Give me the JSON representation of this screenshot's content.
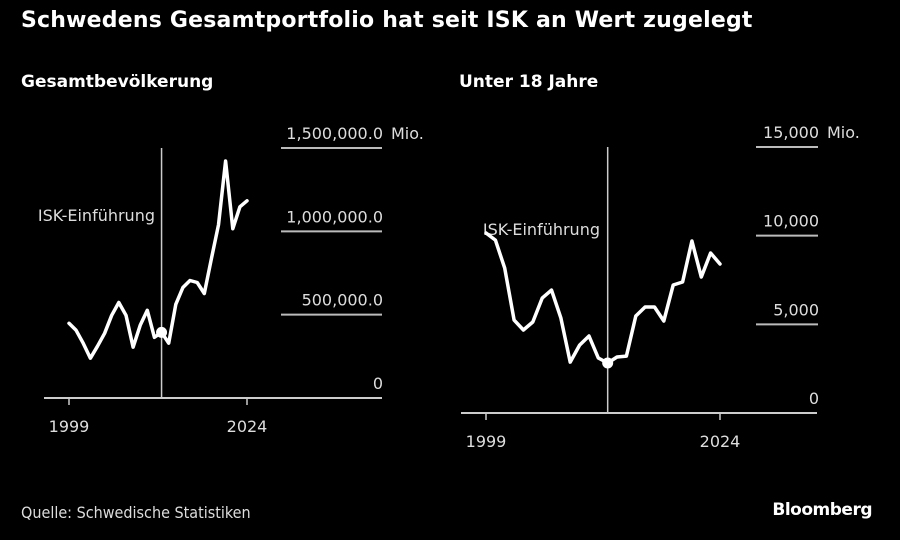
{
  "title": "Schwedens Gesamtportfolio hat seit ISK an Wert zugelegt",
  "source": "Quelle: Schwedische Statistiken",
  "logo": "Bloomberg",
  "colors": {
    "background": "#000000",
    "line": "#ffffff",
    "axis": "#cccccc"
  },
  "chart_data": [
    {
      "type": "line",
      "title": "Gesamtbevölkerung",
      "annotation": "ISK-Einführung",
      "annotation_x": 2012,
      "x": [
        1999,
        2000,
        2001,
        2002,
        2003,
        2004,
        2005,
        2006,
        2007,
        2008,
        2009,
        2010,
        2011,
        2012,
        2013,
        2014,
        2015,
        2016,
        2017,
        2018,
        2019,
        2020,
        2021,
        2022,
        2023,
        2024
      ],
      "values": [
        448000,
        406000,
        329000,
        239000,
        311000,
        388000,
        496000,
        573000,
        496000,
        305000,
        436000,
        526000,
        364000,
        394000,
        329000,
        562000,
        663000,
        705000,
        693000,
        627000,
        836000,
        1039000,
        1422000,
        1016000,
        1147000,
        1183000
      ],
      "xticks": [
        "1999",
        "2024"
      ],
      "yticks": [
        "0",
        "500,000.0",
        "1,000,000.0",
        "1,500,000.0"
      ],
      "ytick_values": [
        0,
        500000,
        1000000,
        1500000
      ],
      "yunit": "Mio.",
      "ylim": [
        0,
        1500000
      ],
      "xlim": [
        1995.5,
        2043
      ]
    },
    {
      "type": "line",
      "title": "Unter 18 Jahre",
      "annotation": "ISK-Einführung",
      "annotation_x": 2012,
      "x": [
        1999,
        2000,
        2001,
        2002,
        2003,
        2004,
        2005,
        2006,
        2007,
        2008,
        2009,
        2010,
        2011,
        2012,
        2013,
        2014,
        2015,
        2016,
        2017,
        2018,
        2019,
        2020,
        2021,
        2022,
        2023,
        2024
      ],
      "values": [
        10150,
        9750,
        8170,
        5240,
        4680,
        5130,
        6480,
        6930,
        5350,
        2870,
        3830,
        4340,
        3100,
        2820,
        3160,
        3210,
        5470,
        5980,
        5980,
        5190,
        7220,
        7390,
        9700,
        7670,
        9020,
        8400
      ],
      "xticks": [
        "1999",
        "2024"
      ],
      "yticks": [
        "0",
        "5,000",
        "10,000",
        "15,000"
      ],
      "ytick_values": [
        0,
        5000,
        10000,
        15000
      ],
      "yunit": "Mio.",
      "ylim": [
        0,
        15000
      ],
      "xlim": [
        1996.3,
        2034.3
      ]
    }
  ]
}
